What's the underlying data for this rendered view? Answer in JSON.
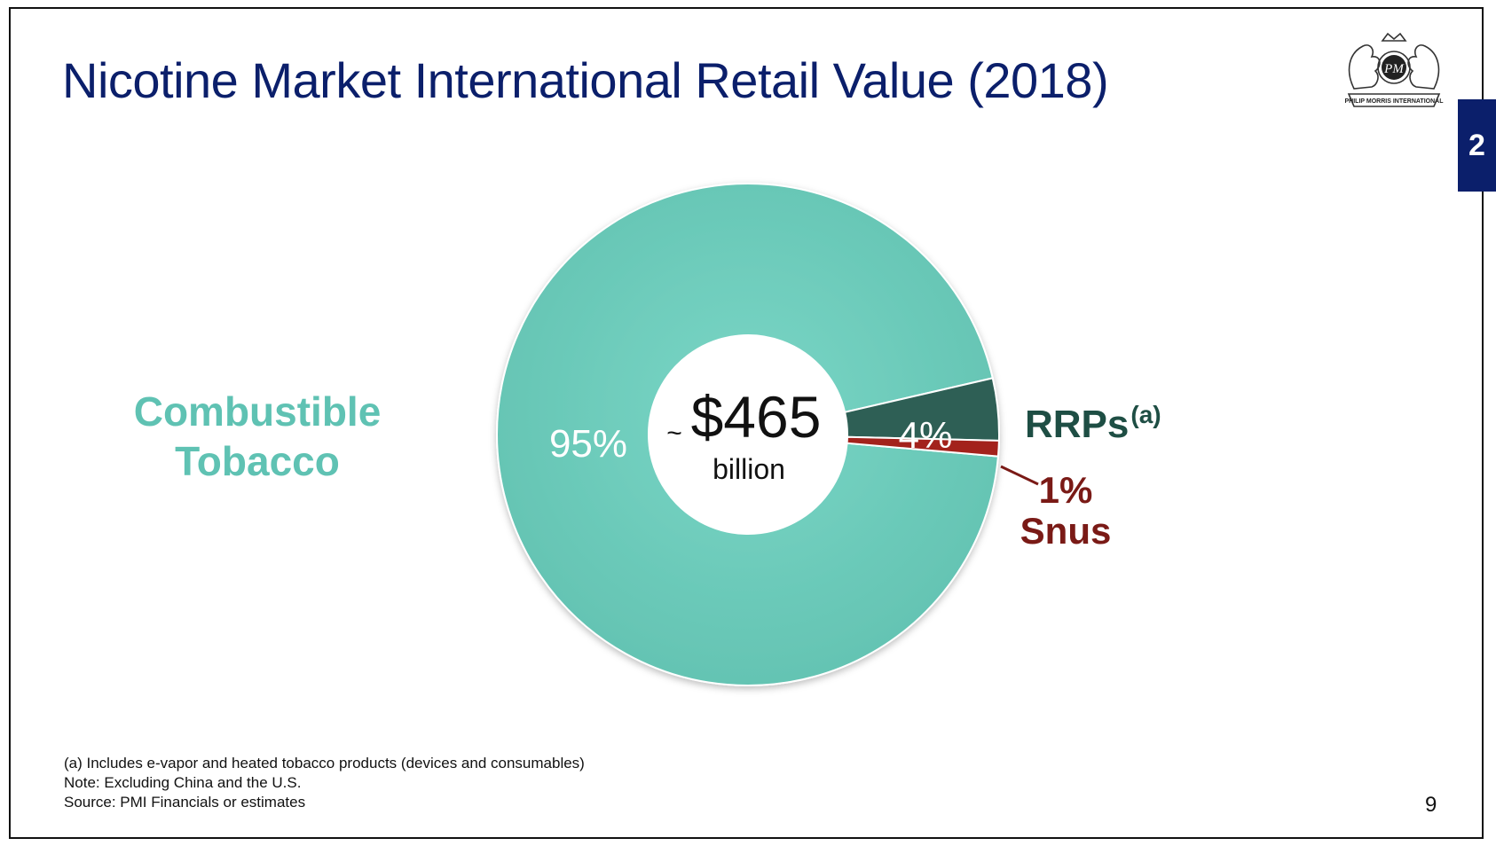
{
  "slide": {
    "title": "Nicotine Market International Retail Value (2018)",
    "section_number": "2",
    "page_number": "9",
    "logo_text": "PM",
    "logo_caption": "PHILIP MORRIS INTERNATIONAL"
  },
  "center_label": {
    "tilde": "~",
    "amount": "$465",
    "unit": "billion"
  },
  "labels": {
    "combustible_line1": "Combustible",
    "combustible_line2": "Tobacco",
    "rrps": "RRPs",
    "rrps_superscript": "(a)",
    "snus_pct": "1%",
    "snus": "Snus"
  },
  "footnotes": {
    "note_a": "(a)  Includes e-vapor and heated tobacco products (devices and consumables)",
    "note": "Note: Excluding China and the U.S.",
    "source": "Source: PMI Financials or estimates"
  },
  "colors": {
    "title": "#0b1f6b",
    "combustible": "#6ccbba",
    "rrps": "#2d5e54",
    "snus": "#a3241e",
    "section_tab": "#0b1f6b"
  },
  "chart_data": {
    "type": "pie",
    "donut": true,
    "categories": [
      "Combustible Tobacco",
      "RRPs",
      "Snus"
    ],
    "values": [
      95,
      4,
      1
    ],
    "value_labels": [
      "95%",
      "4%",
      "1%"
    ],
    "center_text": "~$465 billion"
  }
}
